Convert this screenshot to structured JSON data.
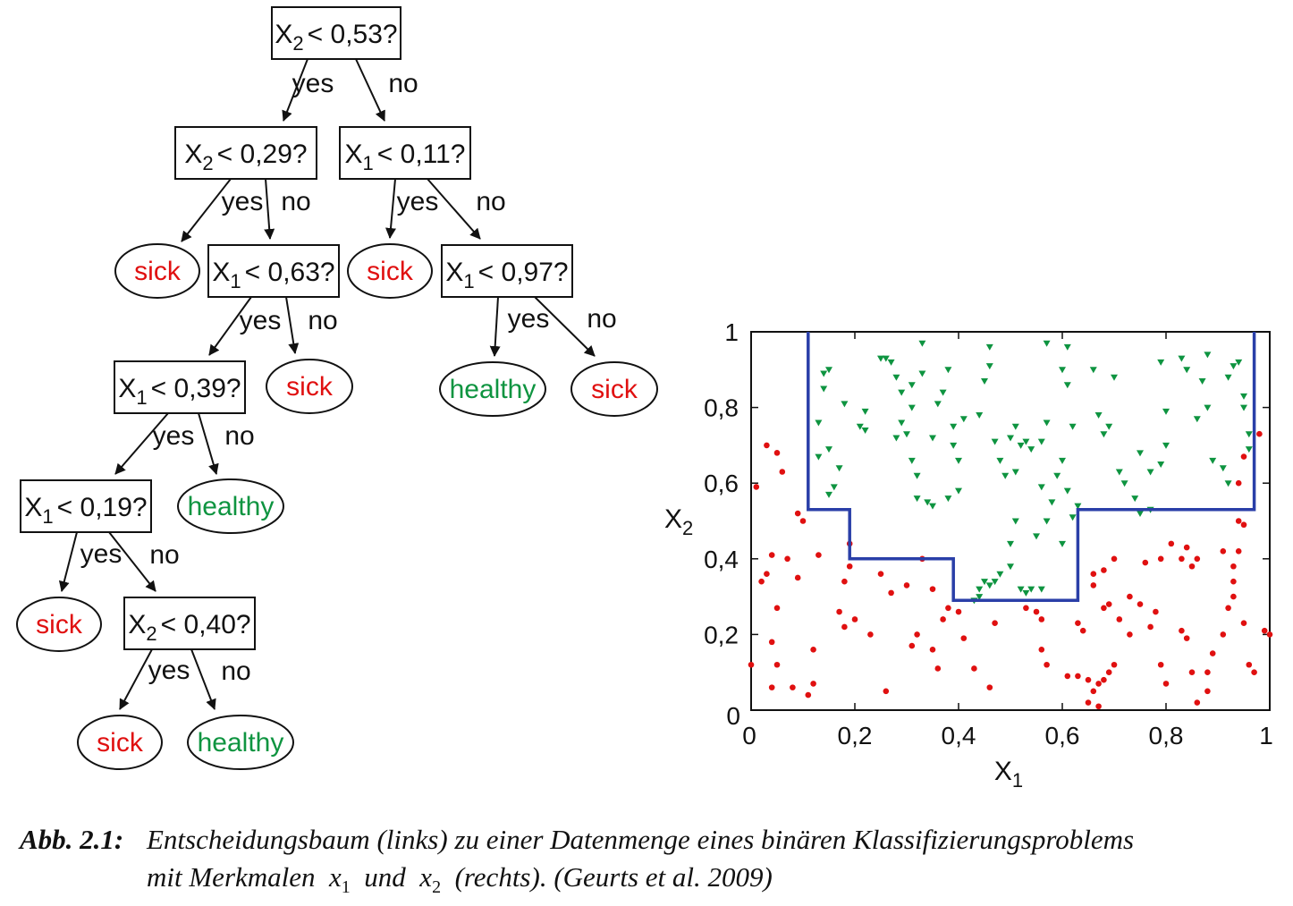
{
  "tree": {
    "nodes": [
      {
        "id": "n1",
        "feature": "X",
        "sub": "2",
        "op": "< 0,53?"
      },
      {
        "id": "n2",
        "feature": "X",
        "sub": "2",
        "op": "< 0,29?"
      },
      {
        "id": "n3",
        "feature": "X",
        "sub": "1",
        "op": "< 0,11?"
      },
      {
        "id": "n4",
        "feature": "X",
        "sub": "1",
        "op": "< 0,63?"
      },
      {
        "id": "n5",
        "feature": "X",
        "sub": "1",
        "op": "< 0,97?"
      },
      {
        "id": "n6",
        "feature": "X",
        "sub": "1",
        "op": "< 0,39?"
      },
      {
        "id": "n7",
        "feature": "X",
        "sub": "1",
        "op": "< 0,19?"
      },
      {
        "id": "n8",
        "feature": "X",
        "sub": "2",
        "op": "< 0,40?"
      }
    ],
    "leaves": [
      {
        "id": "l1",
        "text": "sick",
        "class": "sick"
      },
      {
        "id": "l2",
        "text": "sick",
        "class": "sick"
      },
      {
        "id": "l3",
        "text": "sick",
        "class": "sick"
      },
      {
        "id": "l4",
        "text": "healthy",
        "class": "healthy"
      },
      {
        "id": "l5",
        "text": "sick",
        "class": "sick"
      },
      {
        "id": "l6",
        "text": "healthy",
        "class": "healthy"
      },
      {
        "id": "l7",
        "text": "sick",
        "class": "sick"
      },
      {
        "id": "l8",
        "text": "sick",
        "class": "sick"
      },
      {
        "id": "l9",
        "text": "healthy",
        "class": "healthy"
      }
    ],
    "edges": [
      {
        "from": "n1",
        "to": "n2",
        "label": "yes"
      },
      {
        "from": "n1",
        "to": "n3",
        "label": "no"
      },
      {
        "from": "n2",
        "to": "l1",
        "label": "yes"
      },
      {
        "from": "n2",
        "to": "n4",
        "label": "no"
      },
      {
        "from": "n3",
        "to": "l2",
        "label": "yes"
      },
      {
        "from": "n3",
        "to": "n5",
        "label": "no"
      },
      {
        "from": "n4",
        "to": "n6",
        "label": "yes"
      },
      {
        "from": "n4",
        "to": "l3",
        "label": "no"
      },
      {
        "from": "n5",
        "to": "l4",
        "label": "yes"
      },
      {
        "from": "n5",
        "to": "l5",
        "label": "no"
      },
      {
        "from": "n6",
        "to": "n7",
        "label": "yes"
      },
      {
        "from": "n6",
        "to": "l6",
        "label": "no"
      },
      {
        "from": "n7",
        "to": "l7",
        "label": "yes"
      },
      {
        "from": "n7",
        "to": "n8",
        "label": "no"
      },
      {
        "from": "n8",
        "to": "l8",
        "label": "yes"
      },
      {
        "from": "n8",
        "to": "l9",
        "label": "no"
      }
    ]
  },
  "colors": {
    "sick": "#e01010",
    "healthy": "#0e9440",
    "boundary": "#2a3fa8",
    "edge": "#111111"
  },
  "scatter": {
    "x_tick_labels": [
      "0",
      "0,2",
      "0,4",
      "0,6",
      "0,8",
      "1"
    ],
    "y_tick_labels": [
      "0",
      "0,2",
      "0,4",
      "0,6",
      "0,8",
      "1"
    ],
    "xlabel": {
      "base": "X",
      "sub": "1"
    },
    "ylabel": {
      "base": "X",
      "sub": "2"
    },
    "xlim": [
      0,
      1
    ],
    "ylim": [
      0,
      1
    ],
    "boundary": [
      [
        0.11,
        1
      ],
      [
        0.11,
        0.53
      ],
      [
        0.19,
        0.53
      ],
      [
        0.19,
        0.4
      ],
      [
        0.39,
        0.4
      ],
      [
        0.39,
        0.29
      ],
      [
        0.63,
        0.29
      ],
      [
        0.63,
        0.53
      ],
      [
        0.97,
        0.53
      ],
      [
        0.97,
        1
      ]
    ],
    "sick_points": [
      [
        0.03,
        0.7
      ],
      [
        0.05,
        0.68
      ],
      [
        0.06,
        0.63
      ],
      [
        0.01,
        0.59
      ],
      [
        0.1,
        0.5
      ],
      [
        0.09,
        0.52
      ],
      [
        0.04,
        0.41
      ],
      [
        0.03,
        0.36
      ],
      [
        0.02,
        0.34
      ],
      [
        0.07,
        0.4
      ],
      [
        0.13,
        0.41
      ],
      [
        0.05,
        0.27
      ],
      [
        0.09,
        0.35
      ],
      [
        0.04,
        0.18
      ],
      [
        0.0,
        0.12
      ],
      [
        0.05,
        0.12
      ],
      [
        0.12,
        0.16
      ],
      [
        0.04,
        0.06
      ],
      [
        0.08,
        0.06
      ],
      [
        0.11,
        0.04
      ],
      [
        0.12,
        0.07
      ],
      [
        0.19,
        0.44
      ],
      [
        0.19,
        0.38
      ],
      [
        0.18,
        0.34
      ],
      [
        0.2,
        0.24
      ],
      [
        0.18,
        0.22
      ],
      [
        0.23,
        0.2
      ],
      [
        0.17,
        0.26
      ],
      [
        0.25,
        0.36
      ],
      [
        0.27,
        0.31
      ],
      [
        0.3,
        0.33
      ],
      [
        0.32,
        0.2
      ],
      [
        0.31,
        0.17
      ],
      [
        0.35,
        0.16
      ],
      [
        0.33,
        0.4
      ],
      [
        0.35,
        0.32
      ],
      [
        0.37,
        0.24
      ],
      [
        0.38,
        0.27
      ],
      [
        0.4,
        0.26
      ],
      [
        0.36,
        0.11
      ],
      [
        0.41,
        0.19
      ],
      [
        0.43,
        0.11
      ],
      [
        0.46,
        0.06
      ],
      [
        0.26,
        0.05
      ],
      [
        0.47,
        0.23
      ],
      [
        0.53,
        0.27
      ],
      [
        0.55,
        0.26
      ],
      [
        0.56,
        0.24
      ],
      [
        0.56,
        0.16
      ],
      [
        0.57,
        0.12
      ],
      [
        0.61,
        0.09
      ],
      [
        0.63,
        0.23
      ],
      [
        0.64,
        0.21
      ],
      [
        0.63,
        0.09
      ],
      [
        0.65,
        0.08
      ],
      [
        0.66,
        0.05
      ],
      [
        0.67,
        0.01
      ],
      [
        0.65,
        0.02
      ],
      [
        0.67,
        0.07
      ],
      [
        0.68,
        0.08
      ],
      [
        0.69,
        0.1
      ],
      [
        0.7,
        0.12
      ],
      [
        0.68,
        0.27
      ],
      [
        0.69,
        0.28
      ],
      [
        0.66,
        0.33
      ],
      [
        0.68,
        0.37
      ],
      [
        0.7,
        0.4
      ],
      [
        0.66,
        0.36
      ],
      [
        0.71,
        0.24
      ],
      [
        0.73,
        0.2
      ],
      [
        0.75,
        0.28
      ],
      [
        0.73,
        0.3
      ],
      [
        0.78,
        0.26
      ],
      [
        0.77,
        0.22
      ],
      [
        0.76,
        0.39
      ],
      [
        0.79,
        0.4
      ],
      [
        0.81,
        0.44
      ],
      [
        0.83,
        0.4
      ],
      [
        0.84,
        0.43
      ],
      [
        0.86,
        0.4
      ],
      [
        0.85,
        0.38
      ],
      [
        0.79,
        0.12
      ],
      [
        0.8,
        0.07
      ],
      [
        0.83,
        0.21
      ],
      [
        0.84,
        0.19
      ],
      [
        0.85,
        0.1
      ],
      [
        0.88,
        0.05
      ],
      [
        0.86,
        0.02
      ],
      [
        0.89,
        0.15
      ],
      [
        0.91,
        0.2
      ],
      [
        0.92,
        0.27
      ],
      [
        0.93,
        0.34
      ],
      [
        0.93,
        0.38
      ],
      [
        0.94,
        0.42
      ],
      [
        0.94,
        0.5
      ],
      [
        0.95,
        0.49
      ],
      [
        0.93,
        0.3
      ],
      [
        0.95,
        0.23
      ],
      [
        0.96,
        0.12
      ],
      [
        0.97,
        0.1
      ],
      [
        0.99,
        0.21
      ],
      [
        1.0,
        0.2
      ],
      [
        0.98,
        0.73
      ],
      [
        0.94,
        0.6
      ],
      [
        0.95,
        0.67
      ],
      [
        0.91,
        0.42
      ],
      [
        0.88,
        0.1
      ]
    ],
    "healthy_points": [
      [
        0.14,
        0.89
      ],
      [
        0.15,
        0.9
      ],
      [
        0.14,
        0.85
      ],
      [
        0.15,
        0.69
      ],
      [
        0.13,
        0.67
      ],
      [
        0.16,
        0.59
      ],
      [
        0.17,
        0.64
      ],
      [
        0.15,
        0.57
      ],
      [
        0.18,
        0.81
      ],
      [
        0.21,
        0.75
      ],
      [
        0.22,
        0.79
      ],
      [
        0.22,
        0.74
      ],
      [
        0.25,
        0.93
      ],
      [
        0.26,
        0.93
      ],
      [
        0.27,
        0.92
      ],
      [
        0.28,
        0.88
      ],
      [
        0.29,
        0.84
      ],
      [
        0.31,
        0.86
      ],
      [
        0.33,
        0.97
      ],
      [
        0.33,
        0.89
      ],
      [
        0.31,
        0.8
      ],
      [
        0.3,
        0.73
      ],
      [
        0.29,
        0.76
      ],
      [
        0.28,
        0.72
      ],
      [
        0.31,
        0.66
      ],
      [
        0.32,
        0.56
      ],
      [
        0.32,
        0.62
      ],
      [
        0.34,
        0.55
      ],
      [
        0.35,
        0.54
      ],
      [
        0.35,
        0.72
      ],
      [
        0.36,
        0.81
      ],
      [
        0.38,
        0.9
      ],
      [
        0.37,
        0.84
      ],
      [
        0.39,
        0.75
      ],
      [
        0.39,
        0.7
      ],
      [
        0.4,
        0.66
      ],
      [
        0.4,
        0.58
      ],
      [
        0.38,
        0.56
      ],
      [
        0.41,
        0.77
      ],
      [
        0.44,
        0.78
      ],
      [
        0.45,
        0.87
      ],
      [
        0.46,
        0.96
      ],
      [
        0.46,
        0.91
      ],
      [
        0.47,
        0.71
      ],
      [
        0.48,
        0.66
      ],
      [
        0.49,
        0.62
      ],
      [
        0.5,
        0.72
      ],
      [
        0.51,
        0.75
      ],
      [
        0.51,
        0.63
      ],
      [
        0.52,
        0.7
      ],
      [
        0.53,
        0.71
      ],
      [
        0.54,
        0.69
      ],
      [
        0.56,
        0.71
      ],
      [
        0.56,
        0.59
      ],
      [
        0.57,
        0.76
      ],
      [
        0.57,
        0.97
      ],
      [
        0.59,
        0.62
      ],
      [
        0.6,
        0.9
      ],
      [
        0.61,
        0.96
      ],
      [
        0.61,
        0.86
      ],
      [
        0.62,
        0.75
      ],
      [
        0.6,
        0.66
      ],
      [
        0.61,
        0.58
      ],
      [
        0.62,
        0.51
      ],
      [
        0.63,
        0.54
      ],
      [
        0.58,
        0.55
      ],
      [
        0.57,
        0.5
      ],
      [
        0.55,
        0.46
      ],
      [
        0.51,
        0.5
      ],
      [
        0.5,
        0.44
      ],
      [
        0.5,
        0.38
      ],
      [
        0.48,
        0.36
      ],
      [
        0.47,
        0.34
      ],
      [
        0.46,
        0.33
      ],
      [
        0.45,
        0.34
      ],
      [
        0.44,
        0.32
      ],
      [
        0.43,
        0.29
      ],
      [
        0.44,
        0.3
      ],
      [
        0.52,
        0.32
      ],
      [
        0.53,
        0.31
      ],
      [
        0.54,
        0.32
      ],
      [
        0.56,
        0.32
      ],
      [
        0.6,
        0.44
      ],
      [
        0.66,
        0.9
      ],
      [
        0.67,
        0.78
      ],
      [
        0.7,
        0.88
      ],
      [
        0.69,
        0.75
      ],
      [
        0.68,
        0.73
      ],
      [
        0.71,
        0.63
      ],
      [
        0.72,
        0.6
      ],
      [
        0.74,
        0.56
      ],
      [
        0.75,
        0.52
      ],
      [
        0.77,
        0.53
      ],
      [
        0.75,
        0.68
      ],
      [
        0.77,
        0.63
      ],
      [
        0.79,
        0.65
      ],
      [
        0.8,
        0.7
      ],
      [
        0.8,
        0.79
      ],
      [
        0.79,
        0.92
      ],
      [
        0.83,
        0.93
      ],
      [
        0.84,
        0.9
      ],
      [
        0.87,
        0.87
      ],
      [
        0.88,
        0.94
      ],
      [
        0.88,
        0.8
      ],
      [
        0.86,
        0.77
      ],
      [
        0.89,
        0.66
      ],
      [
        0.91,
        0.64
      ],
      [
        0.92,
        0.6
      ],
      [
        0.92,
        0.88
      ],
      [
        0.93,
        0.91
      ],
      [
        0.94,
        0.92
      ],
      [
        0.95,
        0.8
      ],
      [
        0.95,
        0.83
      ],
      [
        0.96,
        0.73
      ],
      [
        0.96,
        0.69
      ],
      [
        0.13,
        0.76
      ]
    ]
  },
  "caption": {
    "label": "Abb. 2.1:",
    "line1": "Entscheidungsbaum (links) zu einer Datenmenge eines binären Klassifizierungsproblems",
    "line2_part1": "mit Merkmalen",
    "var1": {
      "base": "x",
      "sub": "1"
    },
    "line2_part2": "und",
    "var2": {
      "base": "x",
      "sub": "2"
    },
    "line2_part3": "(rechts). (Geurts et al. 2009)"
  }
}
